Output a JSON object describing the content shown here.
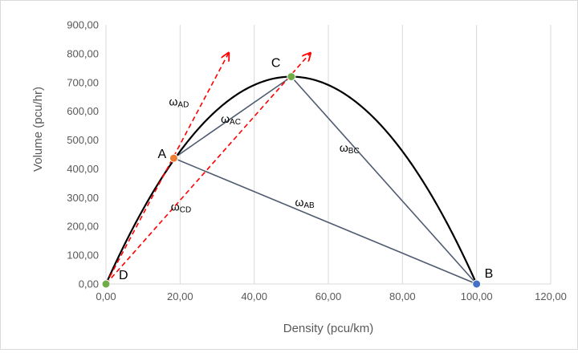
{
  "chart_data": {
    "type": "scatter",
    "title": "",
    "xlabel": "Density  (pcu/km)",
    "ylabel": "Volume (pcu/hr)",
    "xlim": [
      0,
      120
    ],
    "ylim": [
      0,
      900
    ],
    "x_ticks": [
      "0,00",
      "20,00",
      "40,00",
      "60,00",
      "80,00",
      "100,00",
      "120,00"
    ],
    "y_ticks": [
      "0,00",
      "100,00",
      "200,00",
      "300,00",
      "400,00",
      "500,00",
      "600,00",
      "700,00",
      "800,00",
      "900,00"
    ],
    "grid": "vertical major gridlines",
    "curve": {
      "description": "parabolic volume-density relationship",
      "vmax_density": 50,
      "vmax_volume": 720,
      "jam_density": 100
    },
    "points": [
      {
        "label": "A",
        "x": 18.3,
        "y": 437,
        "color": "#ed7d31"
      },
      {
        "label": "C",
        "x": 50,
        "y": 720,
        "color": "#70ad47"
      },
      {
        "label": "B",
        "x": 100,
        "y": 0,
        "color": "#4472c4"
      },
      {
        "label": "D",
        "x": 0,
        "y": 0,
        "color": "#70ad47"
      }
    ],
    "solid_lines": [
      {
        "name": "ωAC",
        "from": "A",
        "to": "C"
      },
      {
        "name": "ωBC",
        "from": "C",
        "to": "B"
      },
      {
        "name": "ωAB",
        "from": "A",
        "to": "B"
      }
    ],
    "dashed_rays": [
      {
        "name": "ωAD",
        "from": [
          0,
          0
        ],
        "to": [
          33,
          800
        ]
      },
      {
        "name": "ωCD",
        "from": [
          0,
          0
        ],
        "to": [
          55,
          800
        ]
      }
    ],
    "line_labels": [
      {
        "main": "ω",
        "sub": "AD",
        "x": 17,
        "y": 620
      },
      {
        "main": "ω",
        "sub": "AC",
        "x": 31,
        "y": 560
      },
      {
        "main": "ω",
        "sub": "BC",
        "x": 63,
        "y": 460
      },
      {
        "main": "ω",
        "sub": "AB",
        "x": 51,
        "y": 270
      },
      {
        "main": "ω",
        "sub": "CD",
        "x": 17.5,
        "y": 255
      }
    ],
    "colors": {
      "curve": "#000000",
      "solid_lines": "#4f5b70",
      "dashed_rays": "#ff0000",
      "grid": "#d9d9d9",
      "tick_text": "#595959"
    }
  }
}
